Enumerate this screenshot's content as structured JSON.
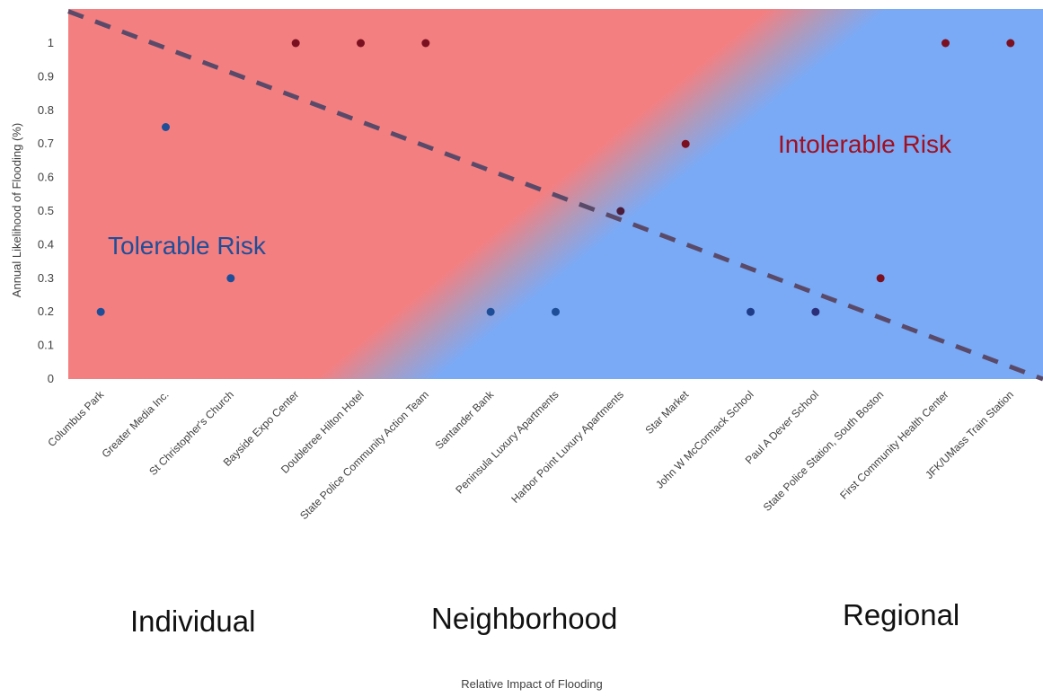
{
  "chart_data": {
    "type": "scatter",
    "title": "",
    "xlabel": "Relative Impact of Flooding",
    "ylabel": "Annual Likelihood of Flooding (%)",
    "ylim": [
      0,
      1.1
    ],
    "yticks": [
      "0",
      "0.1",
      "0.2",
      "0.3",
      "0.4",
      "0.5",
      "0.6",
      "0.7",
      "0.8",
      "0.9",
      "1"
    ],
    "categories": [
      "Columbus Park",
      "Greater Media Inc.",
      "St Christopher's Church",
      "Bayside Expo Center",
      "Doubletree Hilton Hotel",
      "State Police Community Action Team",
      "Santander Bank",
      "Peninsula Luxury Apartments",
      "Harbor Point Luxury Apartments",
      "Star Market",
      "John W McCormack School",
      "Paul A Dever School",
      "State Police Station, South Boston",
      "First Community Health Center",
      "JFK/UMass Train Station"
    ],
    "values": [
      0.2,
      0.75,
      0.3,
      1.0,
      1.0,
      1.0,
      0.2,
      0.2,
      0.5,
      0.7,
      0.2,
      0.2,
      0.3,
      1.0,
      1.0
    ],
    "point_colors": [
      "#1f4e99",
      "#1f4e99",
      "#1f4e99",
      "#7a1020",
      "#7a1020",
      "#7a1020",
      "#1f4e99",
      "#1f4e99",
      "#4a1c3c",
      "#7a1020",
      "#1f3c88",
      "#2b2f7a",
      "#7a1020",
      "#7a1020",
      "#7a1020"
    ],
    "threshold_line": {
      "style": "dashed",
      "color": "#5a4a6a",
      "from": [
        0,
        1.1
      ],
      "to": [
        15,
        0
      ]
    },
    "regions": {
      "tolerable": {
        "label": "Tolerable Risk",
        "color": "#7aaaf6",
        "text_color": "#1f4e99"
      },
      "intolerable": {
        "label": "Intolerable Risk",
        "color": "#f47f80",
        "text_color": "#a01020"
      }
    },
    "groups": [
      "Individual",
      "Neighborhood",
      "Regional"
    ],
    "grid": false,
    "legend": "none"
  }
}
